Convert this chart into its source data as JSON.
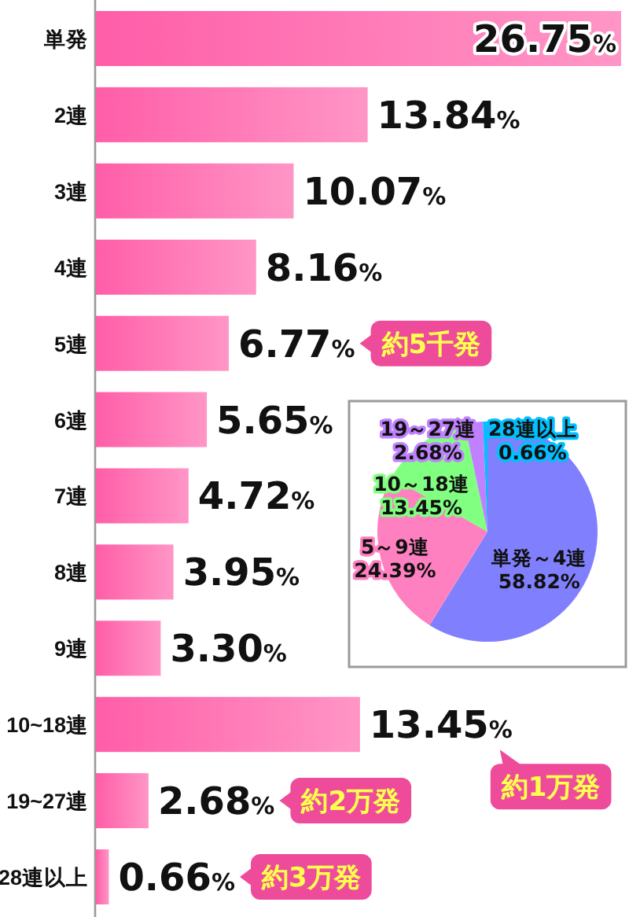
{
  "chart_data": [
    {
      "type": "bar",
      "orientation": "horizontal",
      "categories": [
        "単発",
        "2連",
        "3連",
        "4連",
        "5連",
        "6連",
        "7連",
        "8連",
        "9連",
        "10~18連",
        "19~27連",
        "28連以上"
      ],
      "values": [
        26.75,
        13.84,
        10.07,
        8.16,
        6.77,
        5.65,
        4.72,
        3.95,
        3.3,
        13.45,
        2.68,
        0.66
      ],
      "value_labels": [
        "26.75%",
        "13.84%",
        "10.07%",
        "8.16%",
        "6.77%",
        "5.65%",
        "4.72%",
        "3.95%",
        "3.30%",
        "13.45%",
        "2.68%",
        "0.66%"
      ],
      "color": "#ff5ea8",
      "annotations": [
        "約5千発",
        "約1万発",
        "約2万発",
        "約3万発"
      ]
    },
    {
      "type": "pie",
      "categories": [
        "単発～4連",
        "5～9連",
        "10～18連",
        "19～27連",
        "28連以上"
      ],
      "values": [
        58.82,
        24.39,
        13.45,
        2.68,
        0.66
      ],
      "value_labels": [
        "58.82%",
        "24.39%",
        "13.45%",
        "2.68%",
        "0.66%"
      ],
      "colors": [
        "#8080ff",
        "#ff80c0",
        "#80ff80",
        "#c080ff",
        "#00c0ff"
      ]
    }
  ]
}
